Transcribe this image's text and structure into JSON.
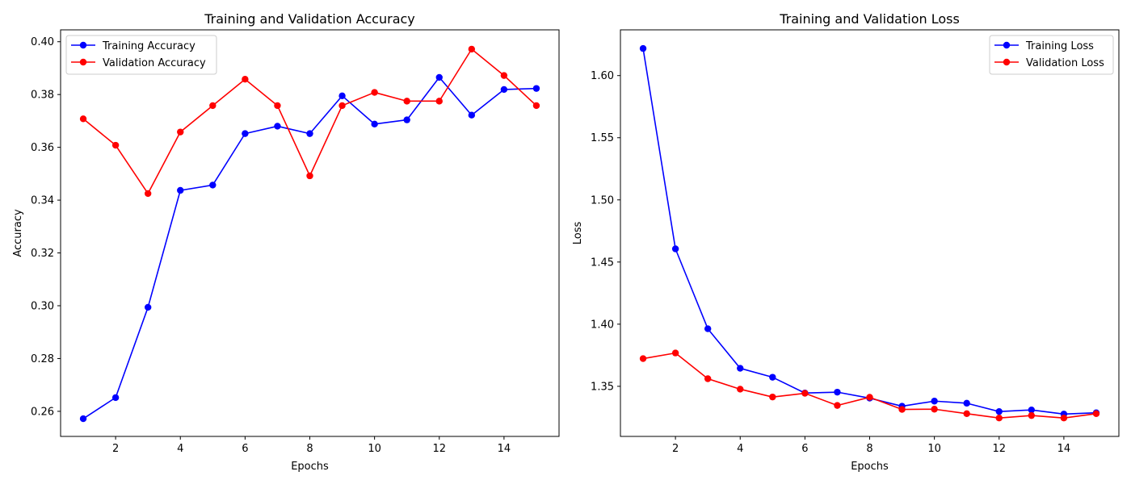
{
  "chart_data": [
    {
      "type": "line",
      "title": "Training and Validation Accuracy",
      "xlabel": "Epochs",
      "ylabel": "Accuracy",
      "x": [
        1,
        2,
        3,
        4,
        5,
        6,
        7,
        8,
        9,
        10,
        11,
        12,
        13,
        14,
        15
      ],
      "xlim": [
        0.3,
        15.7
      ],
      "ylim": [
        0.2505,
        0.4045
      ],
      "xticks": [
        2,
        4,
        6,
        8,
        10,
        12,
        14
      ],
      "yticks": [
        0.26,
        0.28,
        0.3,
        0.32,
        0.34,
        0.36,
        0.38,
        0.4
      ],
      "ytick_labels": [
        "0.26",
        "0.28",
        "0.30",
        "0.32",
        "0.34",
        "0.36",
        "0.38",
        "0.40"
      ],
      "legend_position": "upper-left",
      "grid": false,
      "series": [
        {
          "name": "Training Accuracy",
          "color": "#0000ff",
          "values": [
            0.2572,
            0.2652,
            0.2994,
            0.3437,
            0.3457,
            0.3652,
            0.368,
            0.3652,
            0.3795,
            0.3688,
            0.3704,
            0.3865,
            0.3722,
            0.3819,
            0.3823
          ]
        },
        {
          "name": "Validation Accuracy",
          "color": "#ff0000",
          "values": [
            0.3708,
            0.3608,
            0.3425,
            0.3658,
            0.3758,
            0.3858,
            0.3758,
            0.3492,
            0.3758,
            0.3808,
            0.3775,
            0.3775,
            0.3972,
            0.3872,
            0.3758
          ]
        }
      ]
    },
    {
      "type": "line",
      "title": "Training and Validation Loss",
      "xlabel": "Epochs",
      "ylabel": "Loss",
      "x": [
        1,
        2,
        3,
        4,
        5,
        6,
        7,
        8,
        9,
        10,
        11,
        12,
        13,
        14,
        15
      ],
      "xlim": [
        0.3,
        15.7
      ],
      "ylim": [
        1.3097,
        1.6368
      ],
      "xticks": [
        2,
        4,
        6,
        8,
        10,
        12,
        14
      ],
      "yticks": [
        1.35,
        1.4,
        1.45,
        1.5,
        1.55,
        1.6
      ],
      "ytick_labels": [
        "1.35",
        "1.40",
        "1.45",
        "1.50",
        "1.55",
        "1.60"
      ],
      "legend_position": "upper-right",
      "grid": false,
      "series": [
        {
          "name": "Training Loss",
          "color": "#0000ff",
          "values": [
            1.6218,
            1.4606,
            1.3963,
            1.3645,
            1.3573,
            1.3446,
            1.3453,
            1.3405,
            1.334,
            1.3381,
            1.3364,
            1.3297,
            1.331,
            1.3277,
            1.3287
          ]
        },
        {
          "name": "Validation Loss",
          "color": "#ff0000",
          "values": [
            1.3723,
            1.3768,
            1.3561,
            1.3477,
            1.3414,
            1.3444,
            1.3346,
            1.3412,
            1.3314,
            1.3316,
            1.328,
            1.3245,
            1.3265,
            1.3245,
            1.328
          ]
        }
      ]
    }
  ]
}
